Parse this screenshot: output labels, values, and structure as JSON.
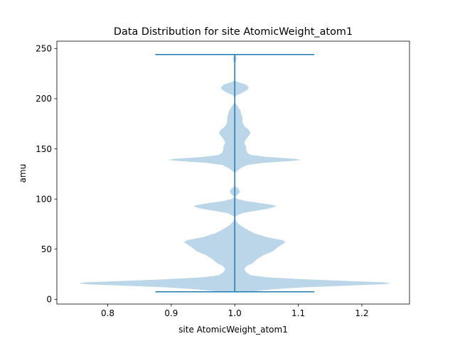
{
  "chart_data": {
    "type": "violin",
    "title": "Data Distribution for site AtomicWeight_atom1",
    "xlabel": "site AtomicWeight_atom1",
    "ylabel": "amu",
    "xlim": [
      0.72,
      1.275
    ],
    "ylim": [
      -4.7,
      257.3
    ],
    "x_ticks": [
      0.8,
      0.9,
      1.0,
      1.1,
      1.2
    ],
    "x_tick_labels": [
      "0.8",
      "0.9",
      "1.0",
      "1.1",
      "1.2"
    ],
    "y_ticks": [
      0,
      50,
      100,
      150,
      200,
      250
    ],
    "y_tick_labels": [
      "0",
      "50",
      "100",
      "150",
      "200",
      "250"
    ],
    "grid": false,
    "colors": {
      "body": "#1f77b4",
      "body_alpha": 0.3,
      "line": "#1f77b4"
    },
    "series": [
      {
        "position": 1.0,
        "min": 7.5,
        "max": 244.0,
        "cap_halfwidth": 0.125,
        "profile": [
          [
            7,
            0.0
          ],
          [
            8,
            0.03
          ],
          [
            10,
            0.06
          ],
          [
            12,
            0.11
          ],
          [
            14,
            0.19
          ],
          [
            15,
            0.235
          ],
          [
            16,
            0.245
          ],
          [
            17,
            0.235
          ],
          [
            18,
            0.19
          ],
          [
            20,
            0.11
          ],
          [
            22,
            0.05
          ],
          [
            24,
            0.025
          ],
          [
            27,
            0.018
          ],
          [
            30,
            0.015
          ],
          [
            33,
            0.018
          ],
          [
            36,
            0.028
          ],
          [
            40,
            0.035
          ],
          [
            44,
            0.045
          ],
          [
            48,
            0.06
          ],
          [
            52,
            0.068
          ],
          [
            55,
            0.075
          ],
          [
            57,
            0.08
          ],
          [
            59,
            0.075
          ],
          [
            62,
            0.05
          ],
          [
            66,
            0.03
          ],
          [
            70,
            0.018
          ],
          [
            74,
            0.008
          ],
          [
            78,
            0.002
          ],
          [
            82,
            0.0
          ],
          [
            84,
            0.005
          ],
          [
            86,
            0.012
          ],
          [
            88,
            0.03
          ],
          [
            90,
            0.05
          ],
          [
            92,
            0.062
          ],
          [
            93,
            0.065
          ],
          [
            94,
            0.06
          ],
          [
            96,
            0.04
          ],
          [
            98,
            0.018
          ],
          [
            100,
            0.005
          ],
          [
            102,
            0.0
          ],
          [
            104,
            0.004
          ],
          [
            106,
            0.007
          ],
          [
            108,
            0.008
          ],
          [
            110,
            0.006
          ],
          [
            112,
            0.002
          ],
          [
            114,
            0.0
          ],
          [
            120,
            0.0
          ],
          [
            126,
            0.0
          ],
          [
            128,
            0.004
          ],
          [
            131,
            0.01
          ],
          [
            134,
            0.02
          ],
          [
            136,
            0.045
          ],
          [
            138,
            0.09
          ],
          [
            139,
            0.105
          ],
          [
            140,
            0.095
          ],
          [
            142,
            0.05
          ],
          [
            144,
            0.025
          ],
          [
            146,
            0.02
          ],
          [
            149,
            0.018
          ],
          [
            152,
            0.018
          ],
          [
            156,
            0.015
          ],
          [
            160,
            0.018
          ],
          [
            163,
            0.022
          ],
          [
            166,
            0.025
          ],
          [
            169,
            0.022
          ],
          [
            172,
            0.016
          ],
          [
            175,
            0.013
          ],
          [
            178,
            0.012
          ],
          [
            181,
            0.012
          ],
          [
            185,
            0.01
          ],
          [
            188,
            0.009
          ],
          [
            190,
            0.007
          ],
          [
            193,
            0.004
          ],
          [
            196,
            0.0
          ],
          [
            200,
            0.0
          ],
          [
            203,
            0.002
          ],
          [
            206,
            0.012
          ],
          [
            209,
            0.02
          ],
          [
            211,
            0.022
          ],
          [
            214,
            0.018
          ],
          [
            216,
            0.008
          ],
          [
            218,
            0.0
          ],
          [
            235,
            0.0
          ],
          [
            237,
            0.002
          ],
          [
            240,
            0.003
          ],
          [
            242,
            0.002
          ],
          [
            244,
            0.0
          ]
        ]
      }
    ]
  }
}
